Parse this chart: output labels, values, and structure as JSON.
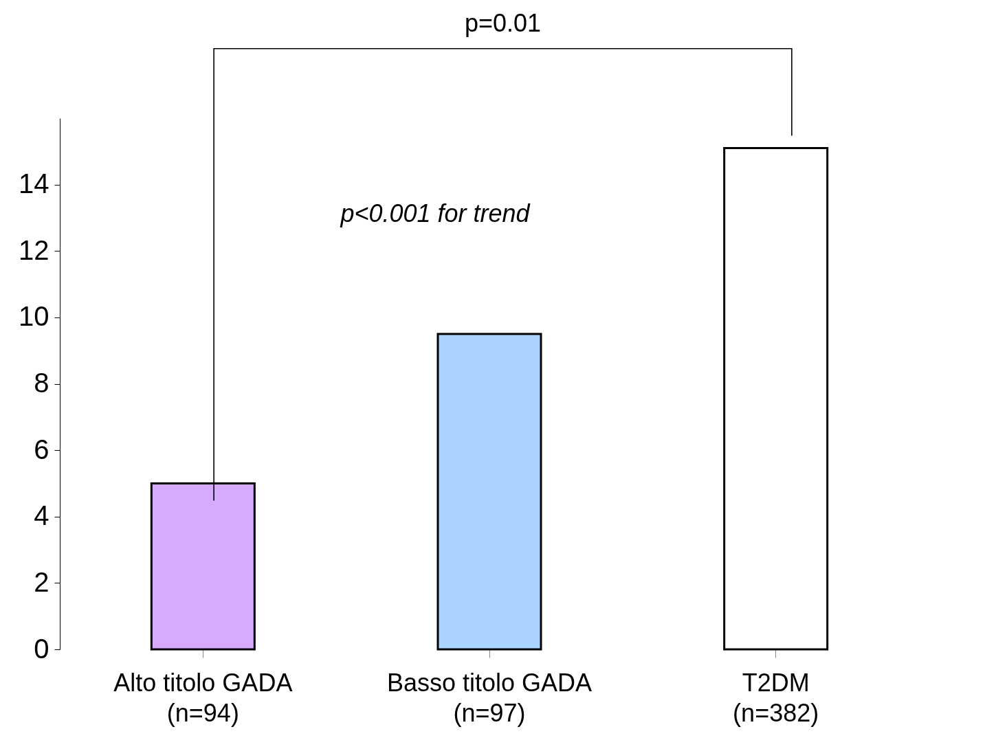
{
  "chart_data": {
    "type": "bar",
    "categories": [
      "Alto titolo GADA\n(n=94)",
      "Basso titolo GADA\n(n=97)",
      "T2DM\n(n=382)"
    ],
    "values": [
      5.0,
      9.5,
      15.1
    ],
    "colors": [
      "#d5aaff",
      "#aad4ff",
      "#ffffff"
    ],
    "ylim": [
      0,
      16
    ],
    "yticks": [
      0,
      2,
      4,
      6,
      8,
      10,
      12,
      14
    ],
    "grid": false,
    "annotations": [
      "p=0.01",
      "p<0.001 for trend"
    ]
  }
}
